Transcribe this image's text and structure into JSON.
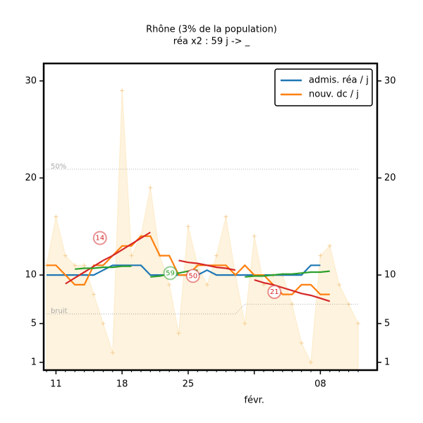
{
  "chart_data": {
    "type": "line",
    "title": "Rhône (3% de la population)",
    "subtitle": "réa x2 : 59 j -> _",
    "categories": [
      null,
      "11",
      null,
      null,
      null,
      null,
      null,
      null,
      "18",
      null,
      null,
      null,
      null,
      null,
      null,
      "25",
      null,
      null,
      null,
      null,
      null,
      null,
      "févr.",
      null,
      null,
      null,
      null,
      null,
      null,
      "08",
      null,
      null,
      null,
      null
    ],
    "ylim": [
      0.2,
      31.8
    ],
    "yticks": [
      1,
      5,
      10,
      20,
      30
    ],
    "legend": "upper right",
    "area": {
      "color": "#fdebc8",
      "values": [
        11,
        16,
        12,
        11,
        11,
        8,
        5,
        2,
        29,
        12,
        14,
        19,
        12,
        9,
        4,
        15,
        11,
        9,
        12,
        16,
        10,
        5,
        14,
        9,
        10,
        10,
        7,
        3,
        1,
        12,
        13,
        9,
        7,
        5
      ]
    },
    "series": [
      {
        "name": "admis. réa / j",
        "color": "#1f77b4",
        "values": [
          10,
          10,
          10,
          10,
          10,
          10,
          10.5,
          11,
          11,
          11,
          11,
          10,
          10,
          10,
          10,
          10,
          10,
          10.5,
          10,
          10,
          10,
          10,
          10,
          10,
          10,
          10,
          10,
          10,
          11,
          11,
          null,
          null,
          null,
          null
        ]
      },
      {
        "name": "nouv. dc / j",
        "color": "#ff7f0e",
        "values": [
          11,
          11,
          10,
          9,
          9,
          11,
          11,
          12,
          13,
          13,
          14,
          14,
          12,
          12,
          10,
          10,
          11,
          11,
          11,
          11,
          10,
          11,
          10,
          10,
          9,
          8,
          8,
          9,
          9,
          8,
          8,
          null,
          null,
          null
        ]
      }
    ],
    "trends": [
      {
        "color": "#d62728",
        "label": "14",
        "values": [
          null,
          null,
          9.1,
          9.7,
          10.3,
          10.9,
          11.5,
          12.0,
          12.6,
          13.2,
          13.8,
          14.4,
          null,
          null,
          null,
          null,
          null,
          null,
          null,
          null,
          null,
          null,
          null,
          null,
          null,
          null,
          null,
          null,
          null,
          null,
          null,
          null,
          null,
          null
        ]
      },
      {
        "color": "#2ca02c",
        "values": [
          null,
          null,
          null,
          10.6,
          10.7,
          10.7,
          10.8,
          10.8,
          10.9,
          10.9,
          null,
          null,
          null,
          null,
          null,
          null,
          null,
          null,
          null,
          null,
          null,
          null,
          null,
          null,
          null,
          null,
          null,
          null,
          null,
          null,
          null,
          null,
          null,
          null
        ]
      },
      {
        "color": "#2ca02c",
        "label": "59",
        "values": [
          null,
          null,
          null,
          null,
          null,
          null,
          null,
          null,
          null,
          null,
          null,
          9.8,
          9.9,
          10.1,
          10.2,
          10.4,
          10.5,
          null,
          null,
          null,
          null,
          null,
          null,
          null,
          null,
          null,
          null,
          null,
          null,
          null,
          null,
          null,
          null,
          null
        ]
      },
      {
        "color": "#d62728",
        "label": "50",
        "values": [
          null,
          null,
          null,
          null,
          null,
          null,
          null,
          null,
          null,
          null,
          null,
          null,
          null,
          null,
          11.5,
          11.3,
          11.2,
          11.0,
          10.8,
          10.7,
          10.5,
          null,
          null,
          null,
          null,
          null,
          null,
          null,
          null,
          null,
          null,
          null,
          null,
          null
        ]
      },
      {
        "color": "#2ca02c",
        "values": [
          null,
          null,
          null,
          null,
          null,
          null,
          null,
          null,
          null,
          null,
          null,
          null,
          null,
          null,
          null,
          null,
          null,
          null,
          null,
          null,
          null,
          9.8,
          9.9,
          9.9,
          10.0,
          10.1,
          10.1,
          10.2,
          10.3,
          10.3,
          10.4,
          null,
          null,
          null
        ]
      },
      {
        "color": "#d62728",
        "label": "21",
        "values": [
          null,
          null,
          null,
          null,
          null,
          null,
          null,
          null,
          null,
          null,
          null,
          null,
          null,
          null,
          null,
          null,
          null,
          null,
          null,
          null,
          null,
          null,
          9.5,
          9.2,
          9.0,
          8.7,
          8.4,
          8.1,
          7.9,
          7.6,
          7.3,
          null,
          null,
          null
        ]
      }
    ],
    "refs": [
      {
        "label": "50%",
        "values": [
          20.9,
          20.9,
          20.9,
          20.9,
          20.9,
          20.9,
          20.9,
          20.9,
          20.9,
          20.9,
          20.9,
          20.9,
          20.9,
          20.9,
          20.9,
          20.9,
          20.9,
          20.9,
          20.9,
          20.9,
          20.9,
          20.9,
          20.9,
          20.9,
          20.9,
          20.9,
          20.9,
          20.9,
          20.9,
          20.9,
          20.9,
          20.9,
          20.9,
          20.9
        ]
      },
      {
        "label": "bruit",
        "values": [
          6,
          6,
          6,
          6,
          6,
          6,
          6,
          6,
          6,
          6,
          6,
          6,
          6,
          6,
          6,
          6,
          6,
          6,
          6,
          6,
          6,
          7,
          7,
          7,
          7,
          7,
          7,
          7,
          7,
          7,
          7,
          7,
          7,
          7
        ]
      }
    ]
  }
}
